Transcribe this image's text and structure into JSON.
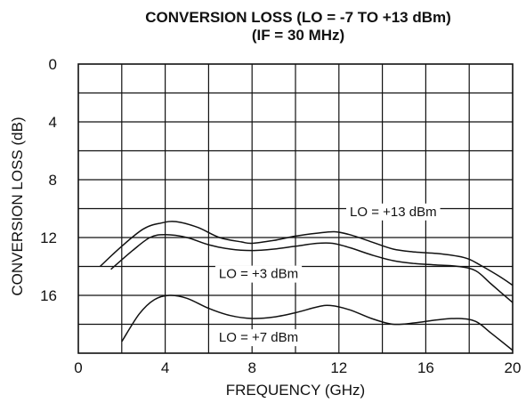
{
  "chart_data": {
    "type": "line",
    "title": "CONVERSION LOSS  (LO = -7 TO +13 dBm)",
    "subtitle": "(IF = 30 MHz)",
    "xlabel": "FREQUENCY (GHz)",
    "ylabel": "CONVERSION LOSS (dB)",
    "xlim": [
      0,
      20
    ],
    "ylim": [
      0,
      20
    ],
    "y_inverted": true,
    "grid": true,
    "x_ticks": [
      0,
      4,
      8,
      12,
      16,
      20
    ],
    "y_ticks": [
      0,
      4,
      8,
      12,
      16
    ],
    "annotations": [
      {
        "text": "LO = +13 dBm",
        "x": 14.5,
        "y": 10.2
      },
      {
        "text": "LO = +3 dBm",
        "x": 8.3,
        "y": 14.5
      },
      {
        "text": "LO = +7 dBm",
        "x": 8.3,
        "y": 18.9
      }
    ],
    "series": [
      {
        "x": [
          1.0,
          2.0,
          3.0,
          3.8,
          4.5,
          5.5,
          6.5,
          7.5,
          8.0,
          9.0,
          10.0,
          11.0,
          11.8,
          12.5,
          13.5,
          14.5,
          15.5,
          16.5,
          17.5,
          18.0,
          18.5,
          19.3,
          20.0
        ],
        "y": [
          14.0,
          12.6,
          11.4,
          11.0,
          10.9,
          11.3,
          12.0,
          12.3,
          12.4,
          12.2,
          11.9,
          11.7,
          11.6,
          11.8,
          12.3,
          12.8,
          13.0,
          13.1,
          13.3,
          13.5,
          13.9,
          14.6,
          15.3
        ]
      },
      {
        "x": [
          1.5,
          2.5,
          3.3,
          4.0,
          5.0,
          6.0,
          7.0,
          8.0,
          9.0,
          10.0,
          11.0,
          11.7,
          12.5,
          13.5,
          14.5,
          15.5,
          16.5,
          17.5,
          18.3,
          19.0,
          20.0
        ],
        "y": [
          14.2,
          12.9,
          12.0,
          11.8,
          12.0,
          12.5,
          12.8,
          12.9,
          12.8,
          12.6,
          12.4,
          12.4,
          12.7,
          13.2,
          13.6,
          13.8,
          13.9,
          14.0,
          14.3,
          15.2,
          16.5
        ]
      },
      {
        "x": [
          2.0,
          2.8,
          3.5,
          4.2,
          5.0,
          6.0,
          7.0,
          8.0,
          9.0,
          10.0,
          11.0,
          11.6,
          12.5,
          13.5,
          14.5,
          15.5,
          16.5,
          17.5,
          18.3,
          19.0,
          20.0
        ],
        "y": [
          19.2,
          17.3,
          16.3,
          16.0,
          16.2,
          16.9,
          17.4,
          17.6,
          17.5,
          17.2,
          16.8,
          16.7,
          17.0,
          17.6,
          18.0,
          17.9,
          17.7,
          17.6,
          17.8,
          18.6,
          19.8
        ]
      }
    ]
  }
}
